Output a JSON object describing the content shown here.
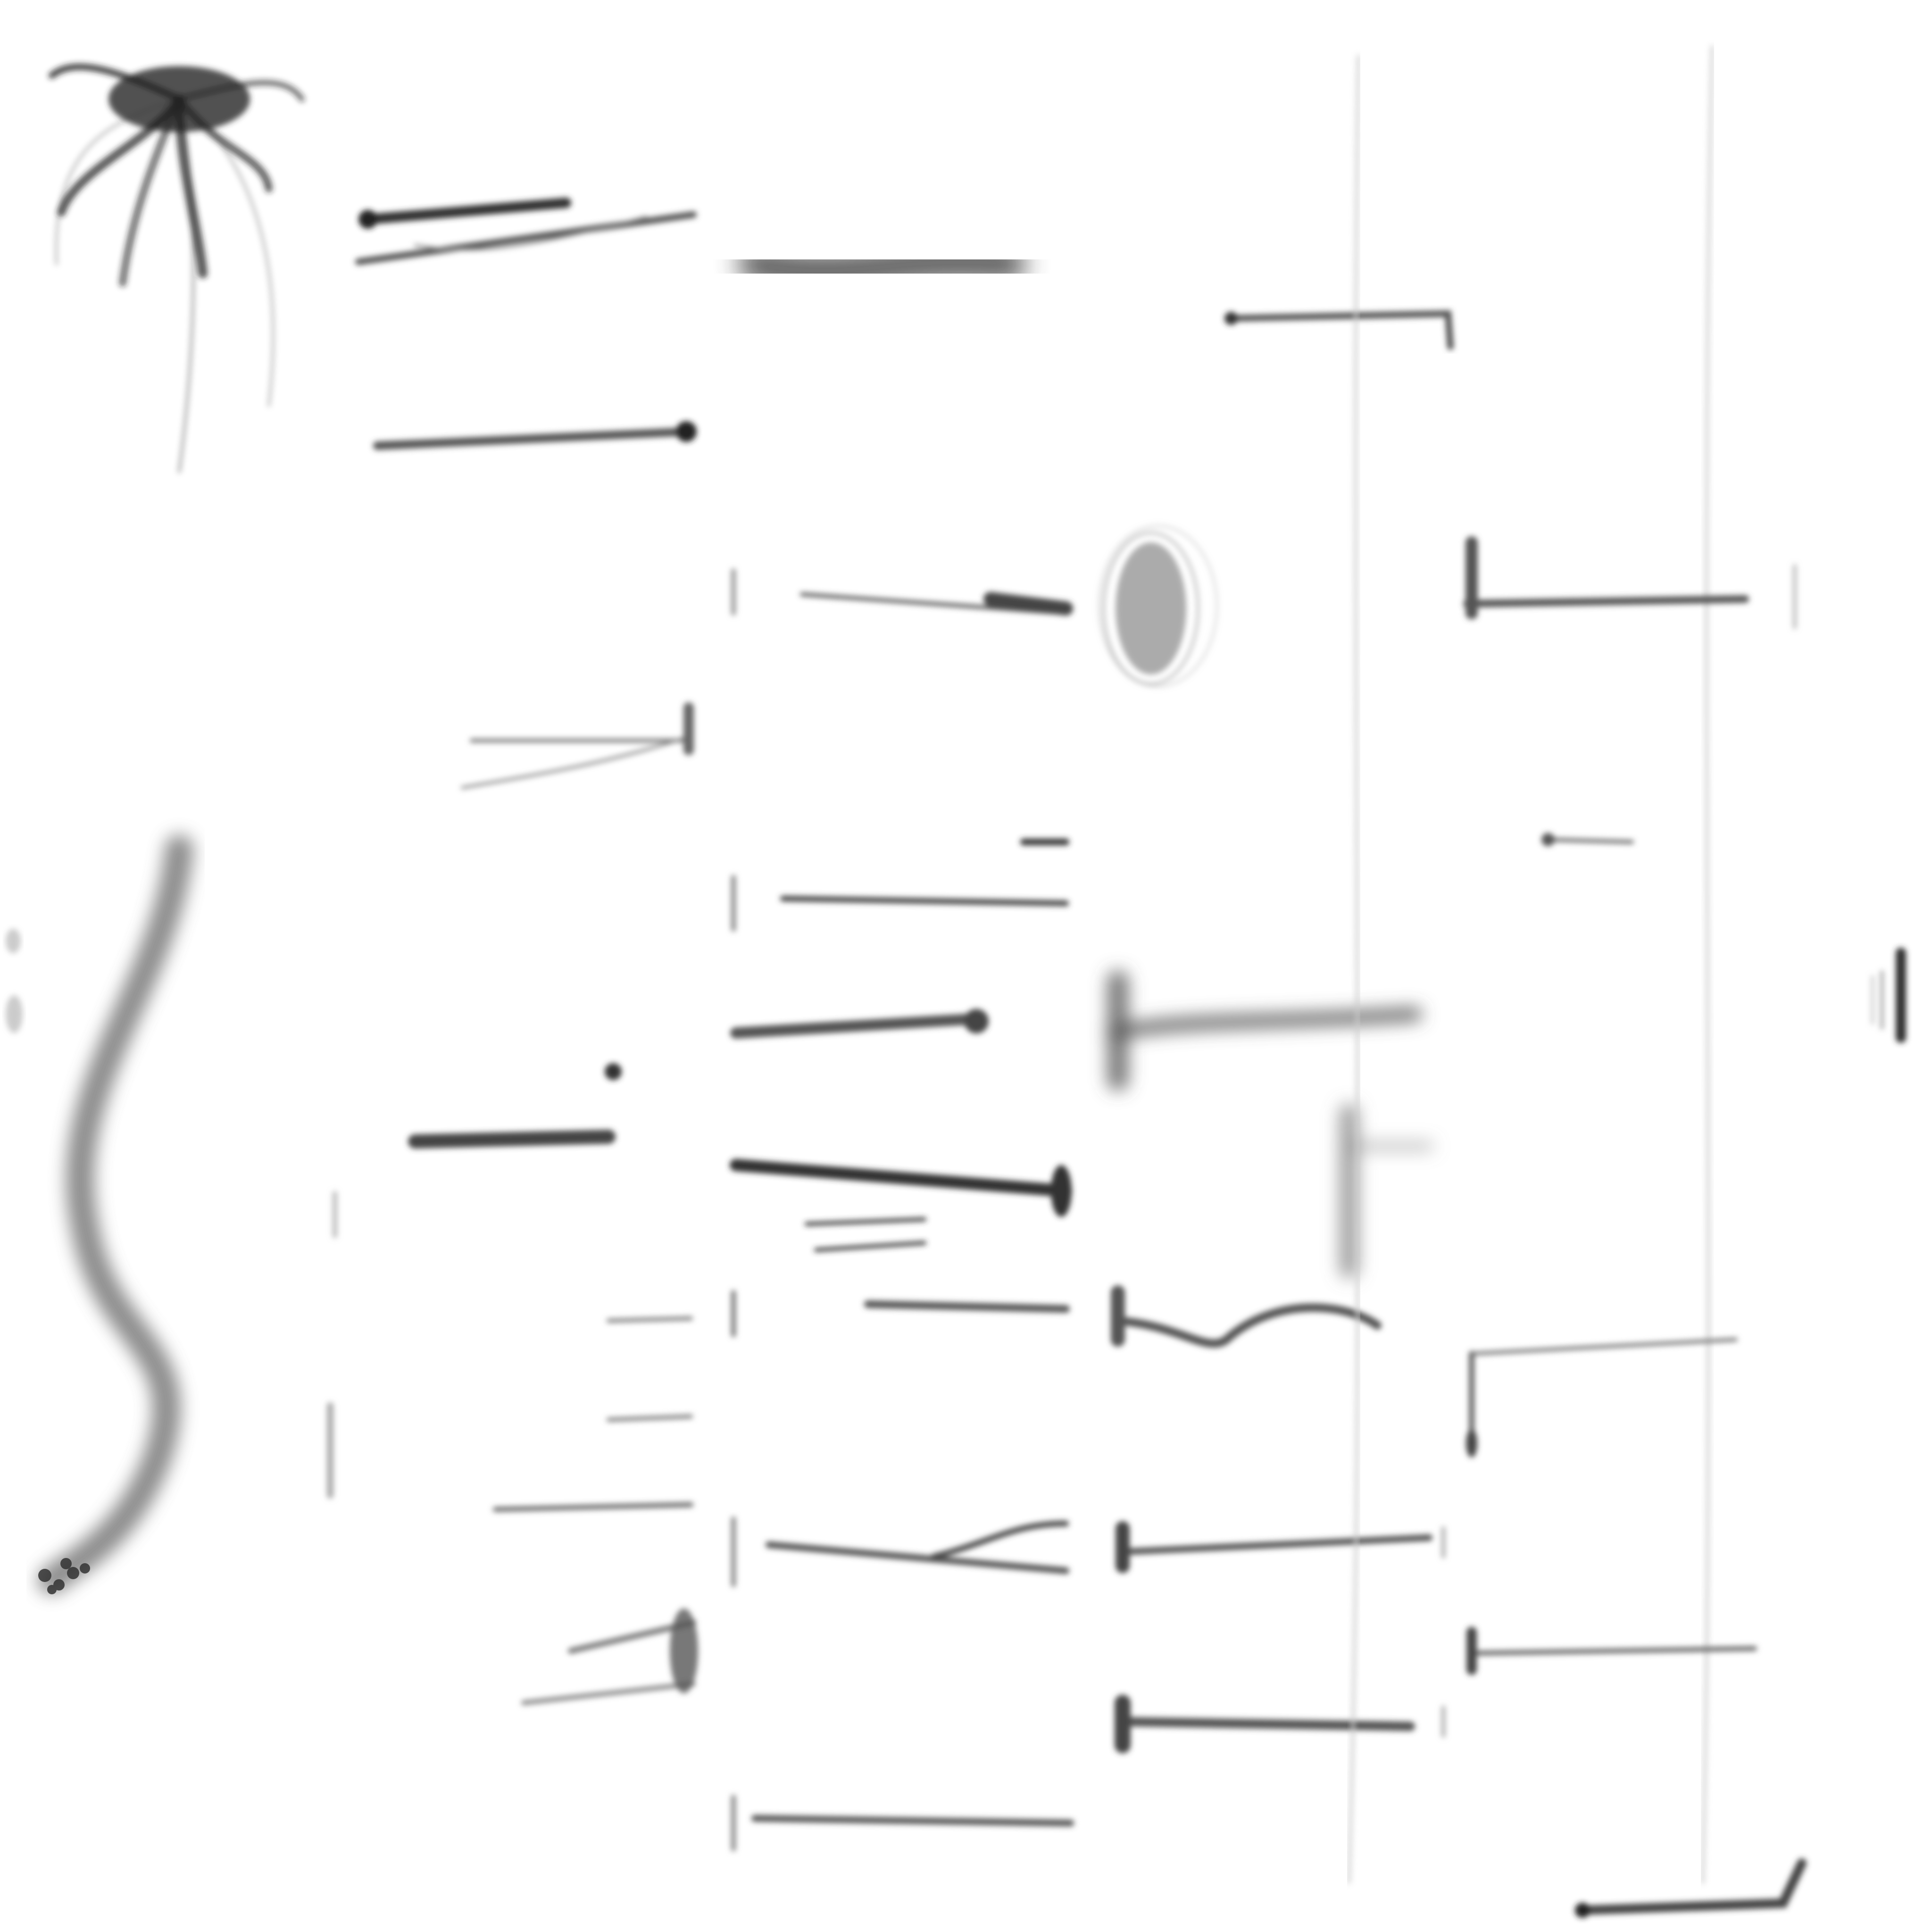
{
  "image": {
    "description_visible_text": "",
    "background_color": "#ffffff",
    "ink_color": "#000000"
  }
}
